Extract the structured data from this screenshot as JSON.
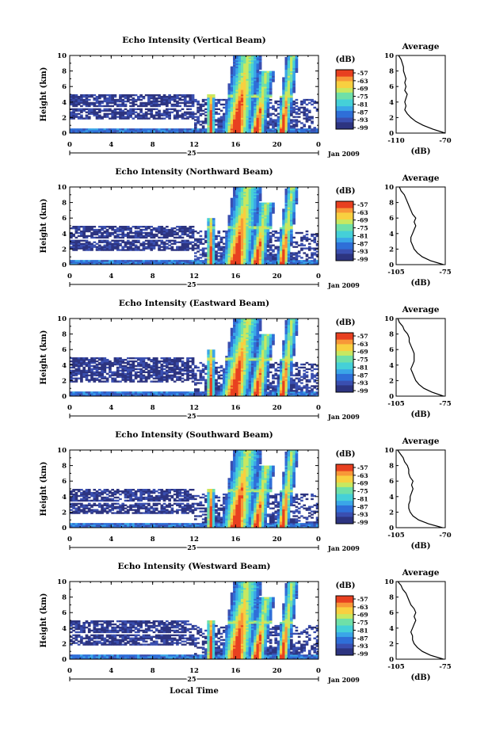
{
  "chart_data": [
    {
      "type": "heatmap",
      "title": "Echo Intensity (Vertical Beam)",
      "ylabel": "Height (km)",
      "yticks": [
        0,
        2,
        4,
        6,
        8,
        10
      ],
      "ylim": [
        0,
        10
      ],
      "xticks": [
        "0",
        "4",
        "8",
        "12",
        "16",
        "20",
        "0"
      ],
      "xlim": [
        0,
        24
      ],
      "date_day": "25",
      "date_label": "Jan 2009",
      "colorbar": {
        "label": "(dB)",
        "ticks": [
          "-57",
          "-63",
          "-69",
          "-75",
          "-81",
          "-87",
          "-93",
          "-99"
        ]
      },
      "profile": {
        "title": "Average",
        "xlabel": "(dB)",
        "xticks": [
          "-110",
          "-70"
        ],
        "xlim": [
          -110,
          -70
        ],
        "heights": [
          0,
          0.5,
          1,
          1.5,
          2,
          2.5,
          3,
          3.5,
          4,
          4.5,
          5,
          5.5,
          6,
          6.5,
          7,
          7.5,
          8,
          8.5,
          9,
          9.5,
          10
        ],
        "values": [
          -70,
          -80,
          -88,
          -94,
          -98,
          -101,
          -103,
          -102,
          -103,
          -102,
          -101,
          -103,
          -102,
          -103,
          -102,
          -103,
          -104,
          -104,
          -105,
          -106,
          -108
        ]
      },
      "features": {
        "bands": [
          [
            0.8,
            1.8,
            13,
            22
          ],
          [
            1.8,
            3.3,
            0,
            12
          ],
          [
            3.5,
            5,
            0,
            12
          ]
        ],
        "cells": [
          [
            13.6,
            0.4,
            5,
            13.6,
            5.5
          ],
          [
            16,
            1.4,
            10,
            17.2,
            8
          ],
          [
            18,
            0.8,
            8,
            19,
            5
          ],
          [
            20.5,
            0.6,
            10,
            21.5,
            6
          ]
        ]
      }
    },
    {
      "type": "heatmap",
      "title": "Echo Intensity (Northward Beam)",
      "ylabel": "Height (km)",
      "yticks": [
        0,
        2,
        4,
        6,
        8,
        10
      ],
      "ylim": [
        0,
        10
      ],
      "xticks": [
        "0",
        "4",
        "8",
        "12",
        "16",
        "20",
        "0"
      ],
      "xlim": [
        0,
        24
      ],
      "date_day": "25",
      "date_label": "Jan 2009",
      "colorbar": {
        "label": "(dB)",
        "ticks": [
          "-57",
          "-63",
          "-69",
          "-75",
          "-81",
          "-87",
          "-93",
          "-99"
        ]
      },
      "profile": {
        "title": "Average",
        "xlabel": "(dB)",
        "xticks": [
          "-105",
          "-75"
        ],
        "xlim": [
          -105,
          -75
        ],
        "heights": [
          0,
          0.5,
          1,
          1.5,
          2,
          2.5,
          3,
          3.5,
          4,
          4.5,
          5,
          5.5,
          6,
          6.5,
          7,
          7.5,
          8,
          8.5,
          9,
          9.5,
          10
        ],
        "values": [
          -76,
          -84,
          -89,
          -92,
          -94,
          -95,
          -96,
          -96,
          -95,
          -94,
          -93,
          -94,
          -93,
          -95,
          -96,
          -97,
          -98,
          -99,
          -100,
          -102,
          -103
        ]
      },
      "features": {
        "bands": [
          [
            0.7,
            1.7,
            13,
            22
          ],
          [
            1.8,
            3.2,
            0,
            12
          ],
          [
            3.5,
            5,
            0,
            12
          ]
        ],
        "cells": [
          [
            13.6,
            0.4,
            6,
            13.6,
            5.5
          ],
          [
            16,
            1.4,
            10,
            17.2,
            8
          ],
          [
            18,
            0.8,
            8,
            19,
            5
          ],
          [
            20.5,
            0.6,
            10,
            21.5,
            6
          ]
        ]
      }
    },
    {
      "type": "heatmap",
      "title": "Echo Intensity (Eastward Beam)",
      "ylabel": "Height (km)",
      "yticks": [
        0,
        2,
        4,
        6,
        8,
        10
      ],
      "ylim": [
        0,
        10
      ],
      "xticks": [
        "0",
        "4",
        "8",
        "12",
        "16",
        "20",
        "0"
      ],
      "xlim": [
        0,
        24
      ],
      "date_day": "25",
      "date_label": "Jan 2009",
      "colorbar": {
        "label": "(dB)",
        "ticks": [
          "-57",
          "-63",
          "-69",
          "-75",
          "-81",
          "-87",
          "-93",
          "-99"
        ]
      },
      "profile": {
        "title": "Average",
        "xlabel": "(dB)",
        "xticks": [
          "-105",
          "-75"
        ],
        "xlim": [
          -105,
          -75
        ],
        "heights": [
          0,
          0.5,
          1,
          1.5,
          2,
          2.5,
          3,
          3.5,
          4,
          4.5,
          5,
          5.5,
          6,
          6.5,
          7,
          7.5,
          8,
          8.5,
          9,
          9.5,
          10
        ],
        "values": [
          -76,
          -83,
          -88,
          -91,
          -93,
          -94,
          -95,
          -96,
          -95,
          -94,
          -94,
          -94,
          -95,
          -96,
          -97,
          -97,
          -98,
          -100,
          -101,
          -103,
          -104
        ]
      },
      "features": {
        "bands": [
          [
            0.7,
            1.8,
            13,
            22
          ],
          [
            1.8,
            3.4,
            0,
            12
          ],
          [
            3.5,
            5,
            0,
            12
          ]
        ],
        "cells": [
          [
            13.6,
            0.4,
            6,
            13.6,
            5.5
          ],
          [
            15.8,
            1.4,
            10,
            17.2,
            8
          ],
          [
            18,
            0.8,
            8,
            19,
            5
          ],
          [
            20.5,
            0.6,
            10,
            21.5,
            6
          ]
        ]
      }
    },
    {
      "type": "heatmap",
      "title": "Echo Intensity (Southward Beam)",
      "ylabel": "Height (km)",
      "yticks": [
        0,
        2,
        4,
        6,
        8,
        10
      ],
      "ylim": [
        0,
        10
      ],
      "xticks": [
        "0",
        "4",
        "8",
        "12",
        "16",
        "20",
        "0"
      ],
      "xlim": [
        0,
        24
      ],
      "date_day": "25",
      "date_label": "Jan 2009",
      "colorbar": {
        "label": "(dB)",
        "ticks": [
          "-57",
          "-63",
          "-69",
          "-75",
          "-81",
          "-87",
          "-93",
          "-99"
        ]
      },
      "profile": {
        "title": "Average",
        "xlabel": "(dB)",
        "xticks": [
          "-105",
          "-70"
        ],
        "xlim": [
          -105,
          -70
        ],
        "heights": [
          0,
          0.5,
          1,
          1.5,
          2,
          2.5,
          3,
          3.5,
          4,
          4.5,
          5,
          5.5,
          6,
          6.5,
          7,
          7.5,
          8,
          8.5,
          9,
          9.5,
          10
        ],
        "values": [
          -72,
          -82,
          -89,
          -93,
          -95,
          -96,
          -96,
          -95,
          -95,
          -94,
          -93,
          -94,
          -93,
          -95,
          -96,
          -96,
          -97,
          -99,
          -100,
          -102,
          -104
        ]
      },
      "features": {
        "bands": [
          [
            0.7,
            1.7,
            13,
            22
          ],
          [
            1.8,
            3.3,
            0,
            12
          ],
          [
            3.5,
            5,
            0,
            12
          ]
        ],
        "cells": [
          [
            13.6,
            0.4,
            5,
            13.6,
            5.5
          ],
          [
            16,
            1.4,
            10,
            17.2,
            8
          ],
          [
            18,
            0.8,
            8,
            19,
            5
          ],
          [
            20.5,
            0.6,
            10,
            21.5,
            6
          ]
        ]
      }
    },
    {
      "type": "heatmap",
      "title": "Echo Intensity (Westward Beam)",
      "ylabel": "Height (km)",
      "yticks": [
        0,
        2,
        4,
        6,
        8,
        10
      ],
      "ylim": [
        0,
        10
      ],
      "xticks": [
        "0",
        "4",
        "8",
        "12",
        "16",
        "20",
        "0"
      ],
      "xlim": [
        0,
        24
      ],
      "date_day": "25",
      "date_label": "Jan 2009",
      "xlabel": "Local Time",
      "colorbar": {
        "label": "(dB)",
        "ticks": [
          "-57",
          "-63",
          "-69",
          "-75",
          "-81",
          "-87",
          "-93",
          "-99"
        ]
      },
      "profile": {
        "title": "Average",
        "xlabel": "(dB)",
        "xticks": [
          "-105",
          "-75"
        ],
        "xlim": [
          -105,
          -75
        ],
        "heights": [
          0,
          0.5,
          1,
          1.5,
          2,
          2.5,
          3,
          3.5,
          4,
          4.5,
          5,
          5.5,
          6,
          6.5,
          7,
          7.5,
          8,
          8.5,
          9,
          9.5,
          10
        ],
        "values": [
          -76,
          -84,
          -89,
          -92,
          -94,
          -95,
          -95,
          -96,
          -95,
          -94,
          -93,
          -94,
          -93,
          -94,
          -96,
          -97,
          -98,
          -99,
          -101,
          -102,
          -104
        ]
      },
      "features": {
        "bands": [
          [
            0.7,
            1.7,
            13,
            22
          ],
          [
            1.8,
            3.3,
            0,
            12
          ],
          [
            3.5,
            5,
            0,
            12
          ]
        ],
        "cells": [
          [
            13.6,
            0.4,
            5,
            13.6,
            5.5
          ],
          [
            16,
            1.4,
            10,
            17.2,
            8
          ],
          [
            18,
            0.8,
            8,
            19,
            5
          ],
          [
            20.5,
            0.6,
            10,
            21.5,
            6
          ]
        ]
      }
    }
  ]
}
